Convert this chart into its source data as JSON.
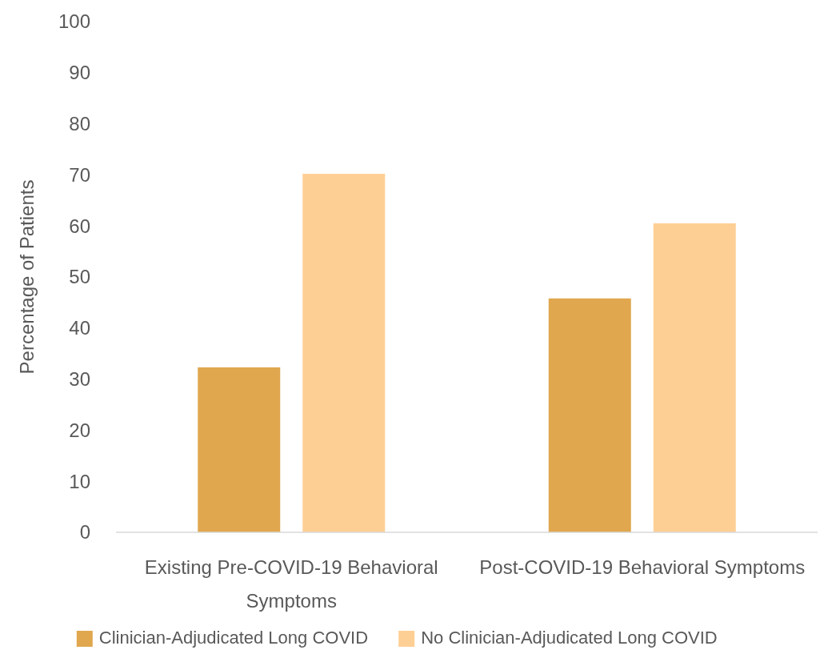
{
  "chart_data": {
    "type": "bar",
    "ylabel": "Percentage of Patients",
    "categories": [
      "Existing Pre-COVID-19 Behavioral Symptoms",
      "Post-COVID-19 Behavioral Symptoms"
    ],
    "series": [
      {
        "name": "Clinician-Adjudicated Long COVID",
        "color": "#e0a74f",
        "values": [
          32.3,
          45.8
        ]
      },
      {
        "name": "No Clinician-Adjudicated Long COVID",
        "color": "#fecf95",
        "values": [
          70.2,
          60.5
        ]
      }
    ],
    "ylim": [
      0,
      100
    ],
    "yticks": [
      0,
      10,
      20,
      30,
      40,
      50,
      60,
      70,
      80,
      90,
      100
    ],
    "grid": false,
    "legend": "bottom"
  }
}
